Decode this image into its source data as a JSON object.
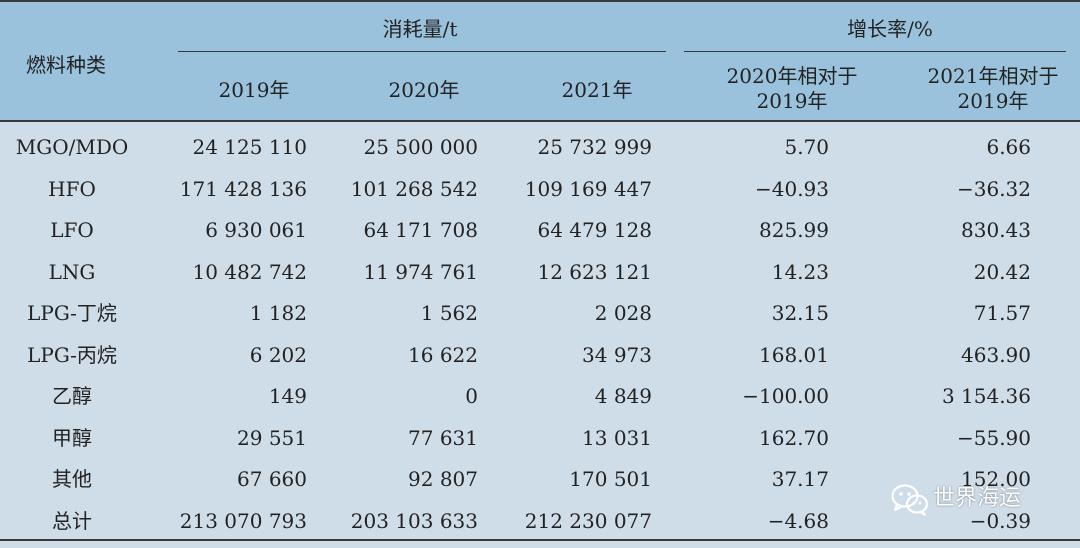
{
  "table": {
    "header": {
      "fuel_type": "燃料种类",
      "consumption_group": "消耗量/t",
      "growth_group": "增长率/%",
      "columns": [
        "2019年",
        "2020年",
        "2021年"
      ],
      "growth_columns": [
        {
          "line1": "2020年相对于",
          "line2": "2019年"
        },
        {
          "line1": "2021年相对于",
          "line2": "2019年"
        }
      ]
    },
    "rows": [
      {
        "fuel": "MGO/MDO",
        "y2019": "24 125 110",
        "y2020": "25 500 000",
        "y2021": "25 732 999",
        "g2020": "5.70",
        "g2021": "6.66"
      },
      {
        "fuel": "HFO",
        "y2019": "171 428 136",
        "y2020": "101 268 542",
        "y2021": "109 169 447",
        "g2020": "−40.93",
        "g2021": "−36.32"
      },
      {
        "fuel": "LFO",
        "y2019": "6 930 061",
        "y2020": "64 171 708",
        "y2021": "64 479 128",
        "g2020": "825.99",
        "g2021": "830.43"
      },
      {
        "fuel": "LNG",
        "y2019": "10 482 742",
        "y2020": "11 974 761",
        "y2021": "12 623 121",
        "g2020": "14.23",
        "g2021": "20.42"
      },
      {
        "fuel": "LPG-丁烷",
        "y2019": "1 182",
        "y2020": "1 562",
        "y2021": "2 028",
        "g2020": "32.15",
        "g2021": "71.57"
      },
      {
        "fuel": "LPG-丙烷",
        "y2019": "6 202",
        "y2020": "16 622",
        "y2021": "34 973",
        "g2020": "168.01",
        "g2021": "463.90"
      },
      {
        "fuel": "乙醇",
        "y2019": "149",
        "y2020": "0",
        "y2021": "4 849",
        "g2020": "−100.00",
        "g2021": "3 154.36"
      },
      {
        "fuel": "甲醇",
        "y2019": "29 551",
        "y2020": "77 631",
        "y2021": "13 031",
        "g2020": "162.70",
        "g2021": "−55.90"
      },
      {
        "fuel": "其他",
        "y2019": "67 660",
        "y2020": "92 807",
        "y2021": "170 501",
        "g2020": "37.17",
        "g2021": "152.00"
      },
      {
        "fuel": "总计",
        "y2019": "213 070 793",
        "y2020": "203 103 633",
        "y2021": "212 230 077",
        "g2020": "−4.68",
        "g2021": "−0.39"
      }
    ]
  },
  "watermark": {
    "text": "世界海运",
    "icon": "wechat-icon"
  },
  "colors": {
    "header_bg": "#9bc2dc",
    "body_bg": "#cfdde9",
    "rule": "#3a3a3a"
  }
}
